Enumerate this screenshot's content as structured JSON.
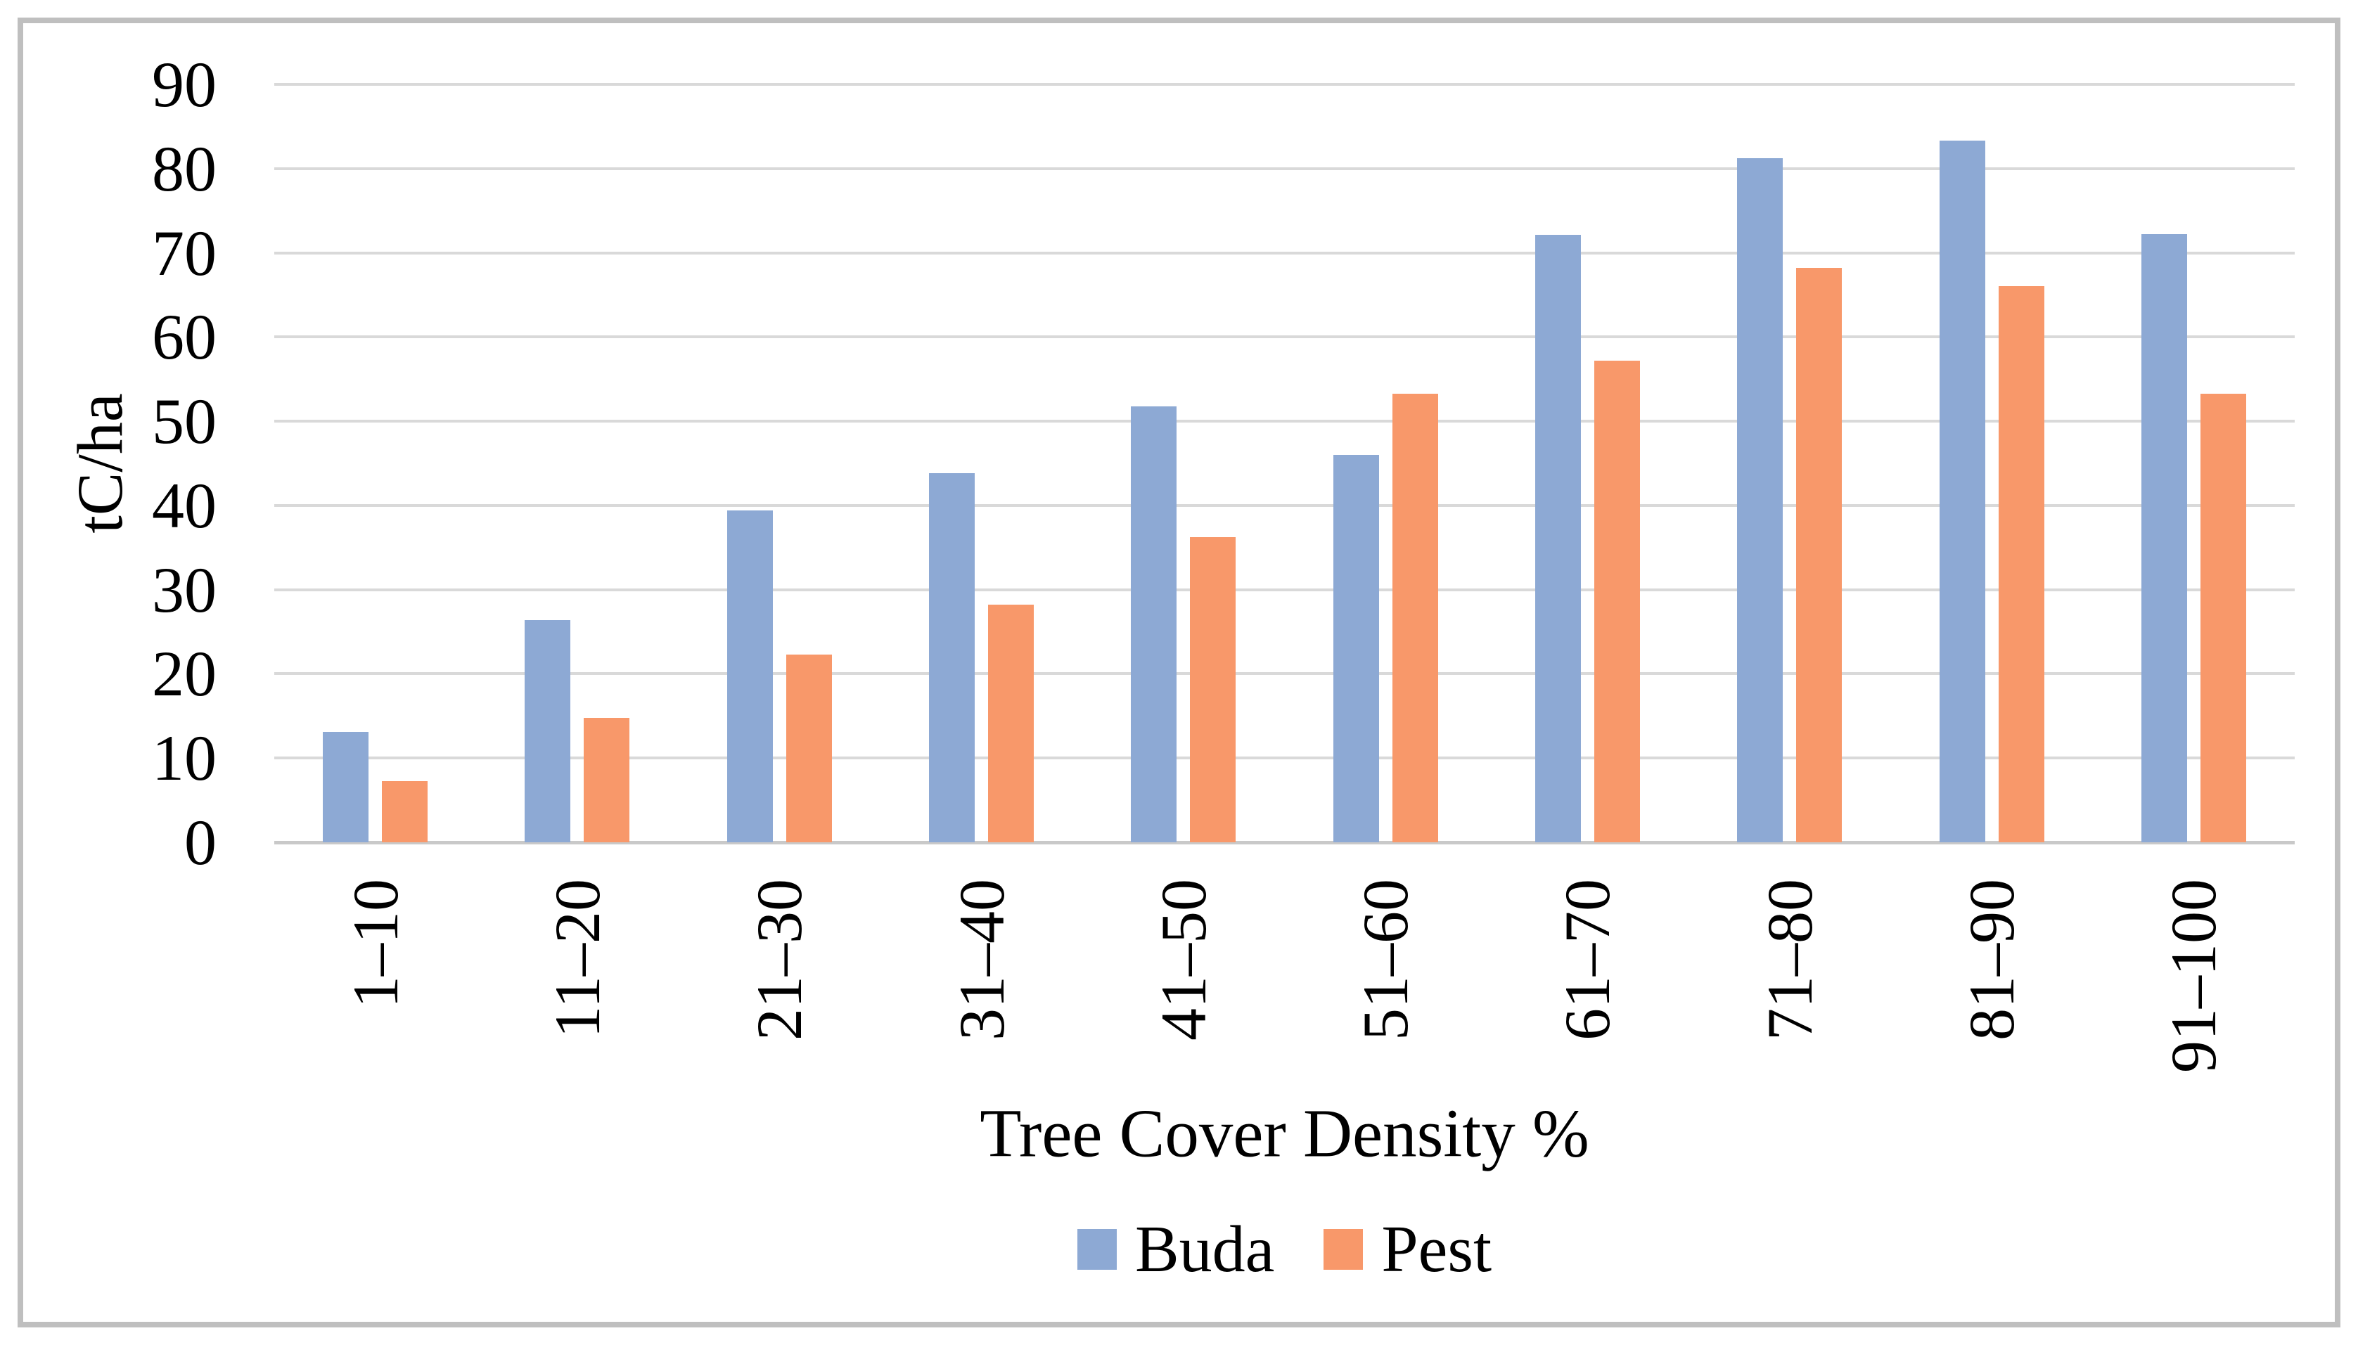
{
  "chart_data": {
    "type": "bar",
    "categories": [
      "1–10",
      "11–20",
      "21–30",
      "31–40",
      "41–50",
      "51–60",
      "61–70",
      "71–80",
      "81–90",
      "91–100"
    ],
    "series": [
      {
        "name": "Buda",
        "color": "#8DA9D4",
        "values": [
          13.1,
          26.4,
          39.4,
          43.8,
          51.8,
          46.0,
          72.1,
          81.2,
          83.3,
          72.2
        ]
      },
      {
        "name": "Pest",
        "color": "#F8986A",
        "values": [
          7.3,
          14.8,
          22.3,
          28.2,
          36.2,
          53.3,
          57.2,
          68.2,
          66.0,
          53.3
        ]
      }
    ],
    "xlabel": "Tree Cover Density %",
    "ylabel": "tC/ha",
    "ylim": [
      0,
      90
    ],
    "yticks": [
      "90",
      "80",
      "70",
      "60",
      "50",
      "40",
      "30",
      "20",
      "10",
      "0"
    ],
    "grid": true,
    "legend_position": "bottom"
  },
  "colors": {
    "frame": "#BFBFBF",
    "gridline": "#D9D9D9",
    "baseline": "#C9C9C9",
    "text": "#000000",
    "background": "#FFFFFF"
  }
}
